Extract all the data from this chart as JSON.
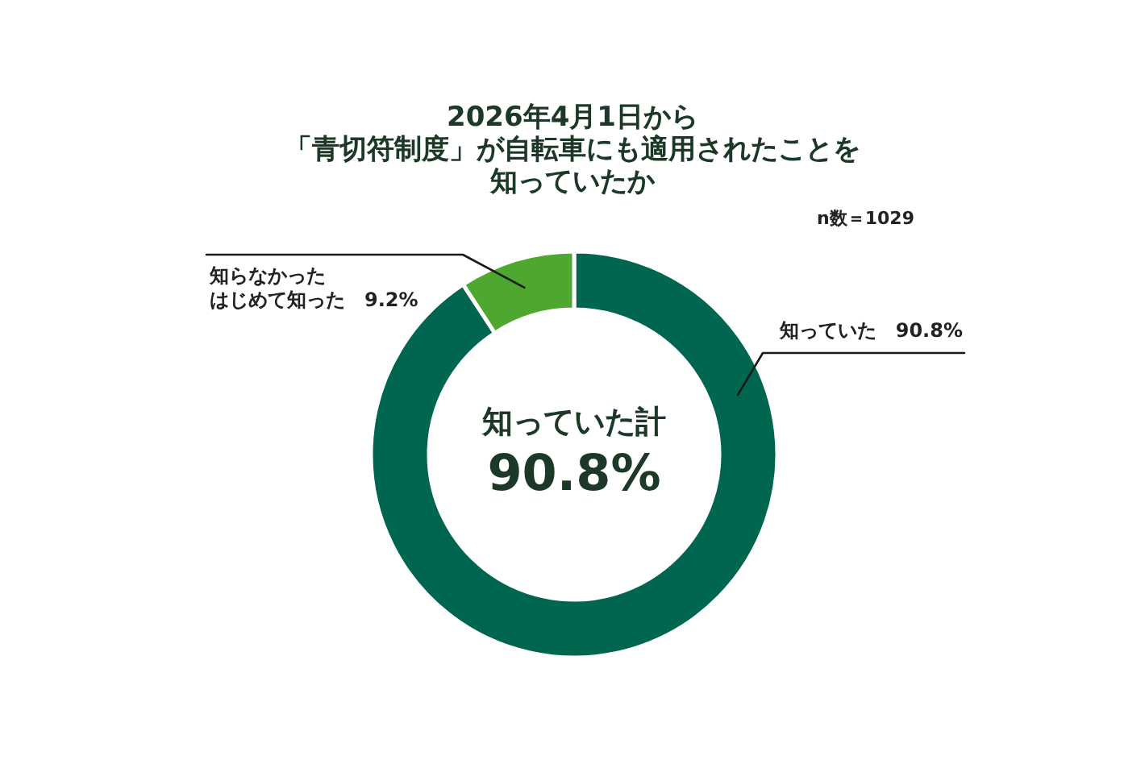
{
  "chart_data": {
    "type": "donut",
    "title": "2026年4月1日から「青切符制度」が自転車にも適用されたことを知っていたか",
    "categories": [
      "知っていた",
      "知らなかったはじめて知った"
    ],
    "values": [
      90.8,
      9.2
    ],
    "value_labels": [
      "90.8%",
      "9.2%"
    ],
    "colors": [
      "#00664f",
      "#4ea82f"
    ],
    "annotations": [
      "n数＝1029",
      "知っていた計",
      "90.8%"
    ]
  }
}
